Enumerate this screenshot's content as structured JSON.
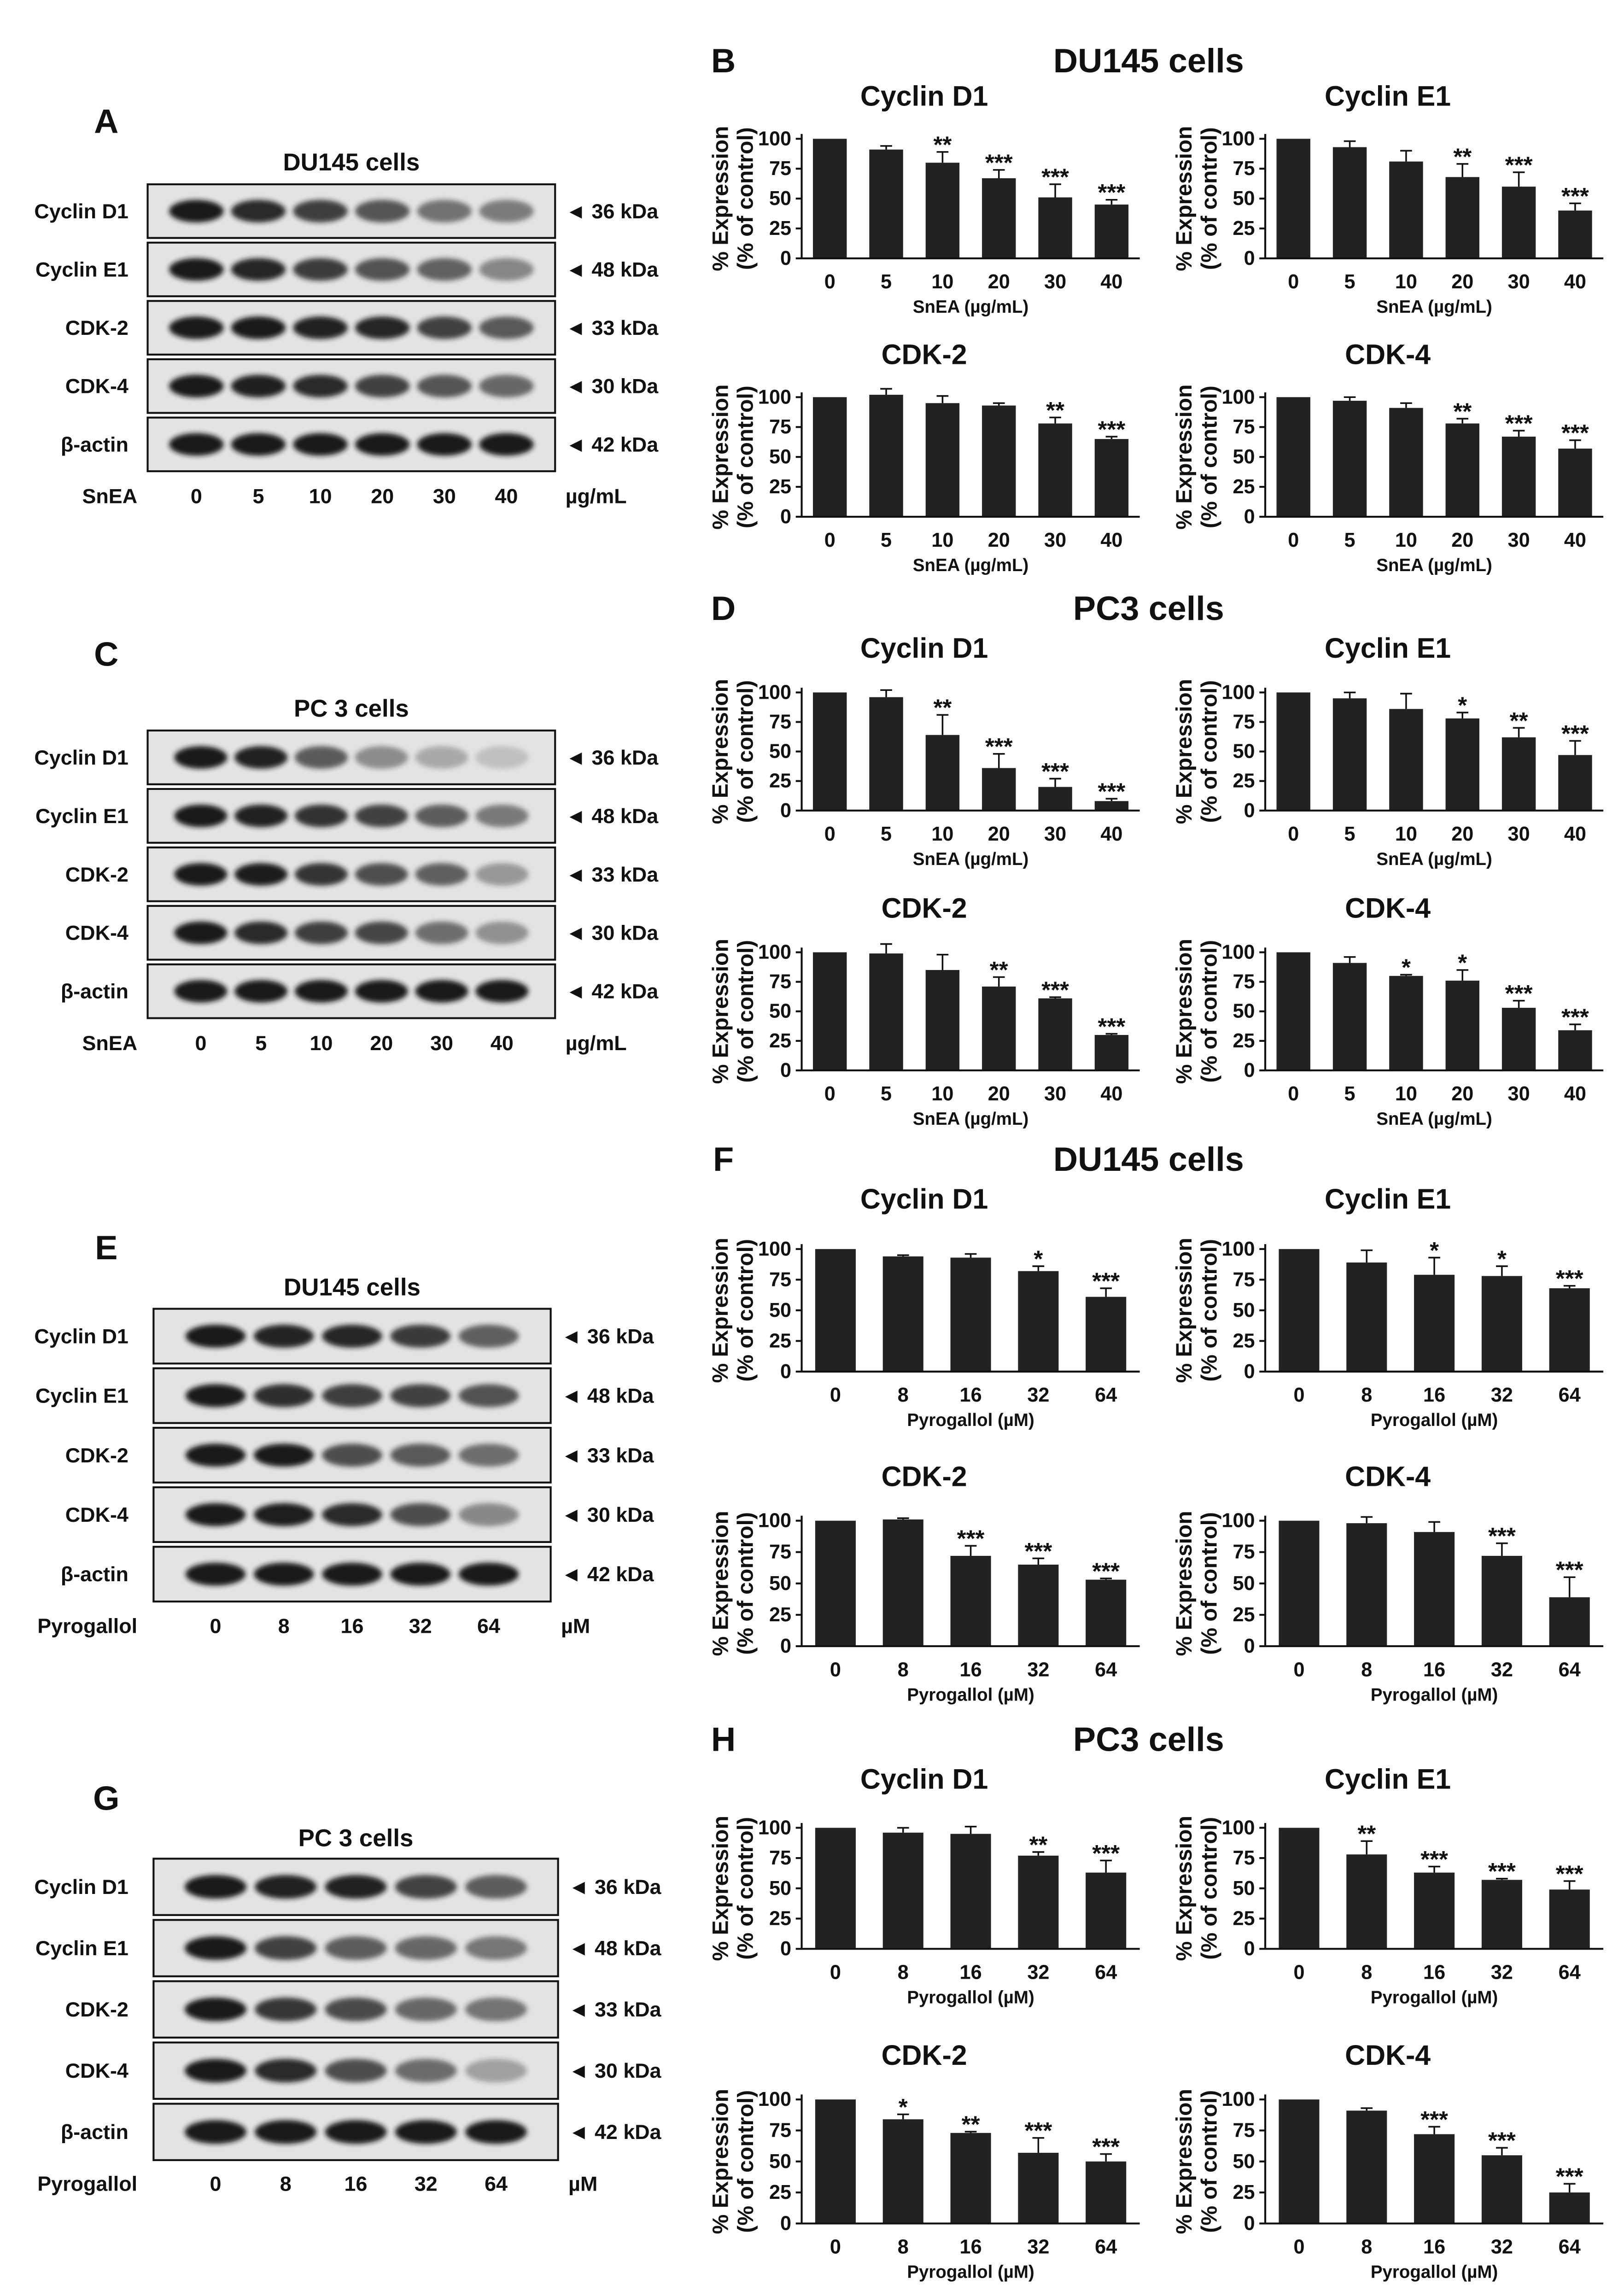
{
  "blots": [
    {
      "letter": "A",
      "title": "DU145 cells",
      "rows": [
        {
          "label": "Cyclin D1",
          "marker": "◄ 36 kDa"
        },
        {
          "label": "Cyclin E1",
          "marker": "◄ 48 kDa"
        },
        {
          "label": "CDK-2",
          "marker": "◄ 33 kDa"
        },
        {
          "label": "CDK-4",
          "marker": "◄ 30 kDa"
        },
        {
          "label": "β-actin",
          "marker": "◄ 42 kDa"
        }
      ],
      "treatment": "SnEA",
      "doses": [
        "0",
        "5",
        "10",
        "20",
        "30",
        "40"
      ],
      "unit": "µg/mL"
    },
    {
      "letter": "C",
      "title": "PC 3 cells",
      "rows": [
        {
          "label": "Cyclin D1",
          "marker": "◄ 36 kDa"
        },
        {
          "label": "Cyclin E1",
          "marker": "◄ 48 kDa"
        },
        {
          "label": "CDK-2",
          "marker": "◄ 33 kDa"
        },
        {
          "label": "CDK-4",
          "marker": "◄ 30 kDa"
        },
        {
          "label": "β-actin",
          "marker": "◄ 42 kDa"
        }
      ],
      "treatment": "SnEA",
      "doses": [
        "0",
        "5",
        "10",
        "20",
        "30",
        "40"
      ],
      "unit": "µg/mL"
    },
    {
      "letter": "E",
      "title": "DU145 cells",
      "rows": [
        {
          "label": "Cyclin D1",
          "marker": "◄ 36 kDa"
        },
        {
          "label": "Cyclin E1",
          "marker": "◄ 48 kDa"
        },
        {
          "label": "CDK-2",
          "marker": "◄ 33 kDa"
        },
        {
          "label": "CDK-4",
          "marker": "◄ 30 kDa"
        },
        {
          "label": "β-actin",
          "marker": "◄ 42 kDa"
        }
      ],
      "treatment": "Pyrogallol",
      "doses": [
        "0",
        "8",
        "16",
        "32",
        "64"
      ],
      "unit": "µM"
    },
    {
      "letter": "G",
      "title": "PC 3 cells",
      "rows": [
        {
          "label": "Cyclin D1",
          "marker": "◄ 36 kDa"
        },
        {
          "label": "Cyclin E1",
          "marker": "◄ 48 kDa"
        },
        {
          "label": "CDK-2",
          "marker": "◄ 33 kDa"
        },
        {
          "label": "CDK-4",
          "marker": "◄ 30 kDa"
        },
        {
          "label": "β-actin",
          "marker": "◄ 42 kDa"
        }
      ],
      "treatment": "Pyrogallol",
      "doses": [
        "0",
        "8",
        "16",
        "32",
        "64"
      ],
      "unit": "µM"
    }
  ],
  "chart_panels": [
    {
      "letter": "B",
      "title": "DU145 cells"
    },
    {
      "letter": "D",
      "title": "PC3 cells"
    },
    {
      "letter": "F",
      "title": "DU145 cells"
    },
    {
      "letter": "H",
      "title": "PC3 cells"
    }
  ],
  "chart_data": [
    {
      "panel": "B",
      "type": "bar",
      "title": "Cyclin D1",
      "categories": [
        "0",
        "5",
        "10",
        "20",
        "30",
        "40"
      ],
      "values": [
        100,
        91,
        80,
        67,
        51,
        45
      ],
      "errors": [
        0,
        3,
        9,
        7,
        11,
        4
      ],
      "significance": [
        "",
        "",
        "**",
        "***",
        "***",
        "***"
      ],
      "xlabel": "SnEA (µg/mL)",
      "ylabel": [
        "% Expression",
        "(% of control)"
      ],
      "yticks": [
        0,
        25,
        50,
        75,
        100
      ],
      "ylim": [
        0,
        100
      ],
      "grid": false,
      "color": "#222222"
    },
    {
      "panel": "B",
      "type": "bar",
      "title": "Cyclin E1",
      "categories": [
        "0",
        "5",
        "10",
        "20",
        "30",
        "40"
      ],
      "values": [
        100,
        93,
        81,
        68,
        60,
        40
      ],
      "errors": [
        0,
        5,
        9,
        11,
        12,
        6
      ],
      "significance": [
        "",
        "",
        "",
        "**",
        "***",
        "***"
      ],
      "xlabel": "SnEA (µg/mL)",
      "ylabel": [
        "% Expression",
        "(% of control)"
      ],
      "yticks": [
        0,
        25,
        50,
        75,
        100
      ],
      "ylim": [
        0,
        100
      ],
      "grid": false,
      "color": "#222222"
    },
    {
      "panel": "B",
      "type": "bar",
      "title": "CDK-2",
      "categories": [
        "0",
        "5",
        "10",
        "20",
        "30",
        "40"
      ],
      "values": [
        100,
        102,
        95,
        93,
        78,
        65
      ],
      "errors": [
        0,
        5,
        6,
        2,
        5,
        2
      ],
      "significance": [
        "",
        "",
        "",
        "",
        "**",
        "***"
      ],
      "xlabel": "SnEA (µg/mL)",
      "ylabel": [
        "% Expression",
        "(% of control)"
      ],
      "yticks": [
        0,
        25,
        50,
        75,
        100
      ],
      "ylim": [
        0,
        100
      ],
      "grid": false,
      "color": "#222222"
    },
    {
      "panel": "B",
      "type": "bar",
      "title": "CDK-4",
      "categories": [
        "0",
        "5",
        "10",
        "20",
        "30",
        "40"
      ],
      "values": [
        100,
        97,
        91,
        78,
        67,
        57
      ],
      "errors": [
        0,
        3,
        4,
        4,
        5,
        7
      ],
      "significance": [
        "",
        "",
        "",
        "**",
        "***",
        "***"
      ],
      "xlabel": "SnEA (µg/mL)",
      "ylabel": [
        "% Expression",
        "(% of control)"
      ],
      "yticks": [
        0,
        25,
        50,
        75,
        100
      ],
      "ylim": [
        0,
        100
      ],
      "grid": false,
      "color": "#222222"
    },
    {
      "panel": "D",
      "type": "bar",
      "title": "Cyclin D1",
      "categories": [
        "0",
        "5",
        "10",
        "20",
        "30",
        "40"
      ],
      "values": [
        100,
        96,
        64,
        36,
        20,
        8
      ],
      "errors": [
        0,
        6,
        17,
        12,
        7,
        2
      ],
      "significance": [
        "",
        "",
        "**",
        "***",
        "***",
        "***"
      ],
      "xlabel": "SnEA (µg/mL)",
      "ylabel": [
        "% Expression",
        "(% of control)"
      ],
      "yticks": [
        0,
        25,
        50,
        75,
        100
      ],
      "ylim": [
        0,
        100
      ],
      "grid": false,
      "color": "#222222"
    },
    {
      "panel": "D",
      "type": "bar",
      "title": "Cyclin E1",
      "categories": [
        "0",
        "5",
        "10",
        "20",
        "30",
        "40"
      ],
      "values": [
        100,
        95,
        86,
        78,
        62,
        47
      ],
      "errors": [
        0,
        5,
        13,
        5,
        8,
        12
      ],
      "significance": [
        "",
        "",
        "",
        "*",
        "**",
        "***"
      ],
      "xlabel": "SnEA (µg/mL)",
      "ylabel": [
        "% Expression",
        "(% of control)"
      ],
      "yticks": [
        0,
        25,
        50,
        75,
        100
      ],
      "ylim": [
        0,
        100
      ],
      "grid": false,
      "color": "#222222"
    },
    {
      "panel": "D",
      "type": "bar",
      "title": "CDK-2",
      "categories": [
        "0",
        "5",
        "10",
        "20",
        "30",
        "40"
      ],
      "values": [
        100,
        99,
        85,
        71,
        61,
        30
      ],
      "errors": [
        0,
        8,
        13,
        8,
        1,
        1
      ],
      "significance": [
        "",
        "",
        "",
        "**",
        "***",
        "***"
      ],
      "xlabel": "SnEA (µg/mL)",
      "ylabel": [
        "% Expression",
        "(% of control)"
      ],
      "yticks": [
        0,
        25,
        50,
        75,
        100
      ],
      "ylim": [
        0,
        100
      ],
      "grid": false,
      "color": "#222222"
    },
    {
      "panel": "D",
      "type": "bar",
      "title": "CDK-4",
      "categories": [
        "0",
        "5",
        "10",
        "20",
        "30",
        "40"
      ],
      "values": [
        100,
        91,
        80,
        76,
        53,
        34
      ],
      "errors": [
        0,
        5,
        1,
        9,
        6,
        5
      ],
      "significance": [
        "",
        "",
        "*",
        "*",
        "***",
        "***"
      ],
      "xlabel": "SnEA (µg/mL)",
      "ylabel": [
        "% Expression",
        "(% of control)"
      ],
      "yticks": [
        0,
        25,
        50,
        75,
        100
      ],
      "ylim": [
        0,
        100
      ],
      "grid": false,
      "color": "#222222"
    },
    {
      "panel": "F",
      "type": "bar",
      "title": "Cyclin D1",
      "categories": [
        "0",
        "8",
        "16",
        "32",
        "64"
      ],
      "values": [
        100,
        94,
        93,
        82,
        61
      ],
      "errors": [
        0,
        1,
        3,
        4,
        7
      ],
      "significance": [
        "",
        "",
        "",
        "*",
        "***"
      ],
      "xlabel": "Pyrogallol (µM)",
      "ylabel": [
        "% Expression",
        "(% of control)"
      ],
      "yticks": [
        0,
        25,
        50,
        75,
        100
      ],
      "ylim": [
        0,
        100
      ],
      "grid": false,
      "color": "#222222"
    },
    {
      "panel": "F",
      "type": "bar",
      "title": "Cyclin E1",
      "categories": [
        "0",
        "8",
        "16",
        "32",
        "64"
      ],
      "values": [
        100,
        89,
        79,
        78,
        68
      ],
      "errors": [
        0,
        10,
        14,
        8,
        2
      ],
      "significance": [
        "",
        "",
        "*",
        "*",
        "***"
      ],
      "xlabel": "Pyrogallol (µM)",
      "ylabel": [
        "% Expression",
        "(% of control)"
      ],
      "yticks": [
        0,
        25,
        50,
        75,
        100
      ],
      "ylim": [
        0,
        100
      ],
      "grid": false,
      "color": "#222222"
    },
    {
      "panel": "F",
      "type": "bar",
      "title": "CDK-2",
      "categories": [
        "0",
        "8",
        "16",
        "32",
        "64"
      ],
      "values": [
        100,
        101,
        72,
        65,
        53
      ],
      "errors": [
        0,
        1,
        8,
        5,
        1
      ],
      "significance": [
        "",
        "",
        "***",
        "***",
        "***"
      ],
      "xlabel": "Pyrogallol (µM)",
      "ylabel": [
        "% Expression",
        "(% of control)"
      ],
      "yticks": [
        0,
        25,
        50,
        75,
        100
      ],
      "ylim": [
        0,
        100
      ],
      "grid": false,
      "color": "#222222"
    },
    {
      "panel": "F",
      "type": "bar",
      "title": "CDK-4",
      "categories": [
        "0",
        "8",
        "16",
        "32",
        "64"
      ],
      "values": [
        100,
        98,
        91,
        72,
        39
      ],
      "errors": [
        0,
        5,
        8,
        10,
        16
      ],
      "significance": [
        "",
        "",
        "",
        "***",
        "***"
      ],
      "xlabel": "Pyrogallol (µM)",
      "ylabel": [
        "% Expression",
        "(% of control)"
      ],
      "yticks": [
        0,
        25,
        50,
        75,
        100
      ],
      "ylim": [
        0,
        100
      ],
      "grid": false,
      "color": "#222222"
    },
    {
      "panel": "H",
      "type": "bar",
      "title": "Cyclin D1",
      "categories": [
        "0",
        "8",
        "16",
        "32",
        "64"
      ],
      "values": [
        100,
        96,
        95,
        77,
        63
      ],
      "errors": [
        0,
        4,
        6,
        3,
        10
      ],
      "significance": [
        "",
        "",
        "",
        "**",
        "***"
      ],
      "xlabel": "Pyrogallol (µM)",
      "ylabel": [
        "% Expression",
        "(% of control)"
      ],
      "yticks": [
        0,
        25,
        50,
        75,
        100
      ],
      "ylim": [
        0,
        100
      ],
      "grid": false,
      "color": "#222222"
    },
    {
      "panel": "H",
      "type": "bar",
      "title": "Cyclin E1",
      "categories": [
        "0",
        "8",
        "16",
        "32",
        "64"
      ],
      "values": [
        100,
        78,
        63,
        57,
        49
      ],
      "errors": [
        0,
        11,
        5,
        1,
        7
      ],
      "significance": [
        "",
        "**",
        "***",
        "***",
        "***"
      ],
      "xlabel": "Pyrogallol (µM)",
      "ylabel": [
        "% Expression",
        "(% of control)"
      ],
      "yticks": [
        0,
        25,
        50,
        75,
        100
      ],
      "ylim": [
        0,
        100
      ],
      "grid": false,
      "color": "#222222"
    },
    {
      "panel": "H",
      "type": "bar",
      "title": "CDK-2",
      "categories": [
        "0",
        "8",
        "16",
        "32",
        "64"
      ],
      "values": [
        100,
        84,
        73,
        57,
        50
      ],
      "errors": [
        0,
        4,
        1,
        12,
        6
      ],
      "significance": [
        "",
        "*",
        "**",
        "***",
        "***"
      ],
      "xlabel": "Pyrogallol (µM)",
      "ylabel": [
        "% Expression",
        "(% of control)"
      ],
      "yticks": [
        0,
        25,
        50,
        75,
        100
      ],
      "ylim": [
        0,
        100
      ],
      "grid": false,
      "color": "#222222"
    },
    {
      "panel": "H",
      "type": "bar",
      "title": "CDK-4",
      "categories": [
        "0",
        "8",
        "16",
        "32",
        "64"
      ],
      "values": [
        100,
        91,
        72,
        55,
        25
      ],
      "errors": [
        0,
        2,
        6,
        6,
        7
      ],
      "significance": [
        "",
        "",
        "***",
        "***",
        "***"
      ],
      "xlabel": "Pyrogallol (µM)",
      "ylabel": [
        "% Expression",
        "(% of control)"
      ],
      "yticks": [
        0,
        25,
        50,
        75,
        100
      ],
      "ylim": [
        0,
        100
      ],
      "grid": false,
      "color": "#222222"
    }
  ]
}
